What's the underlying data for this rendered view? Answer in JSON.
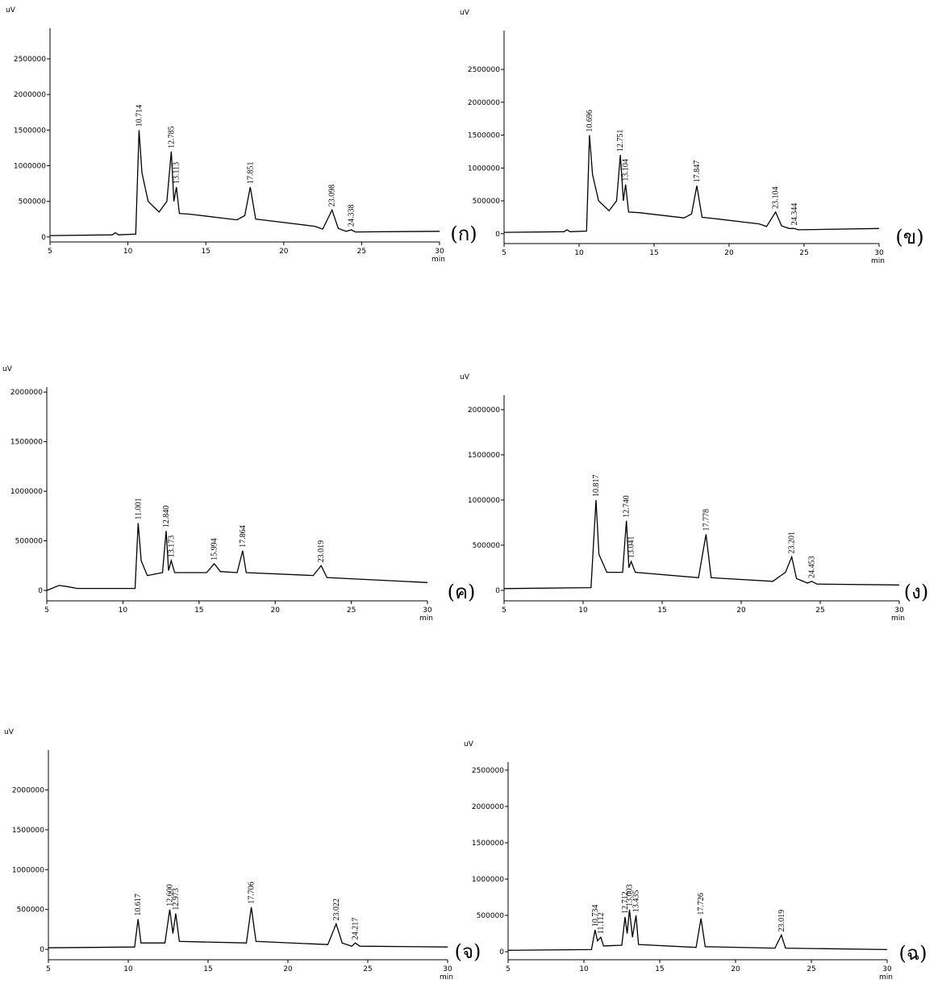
{
  "chart_data": [
    {
      "type": "line",
      "panel_label": "(ก)",
      "y_label": "uV",
      "x_label": "min",
      "x": [
        5,
        9,
        9.2,
        9.4,
        10.5,
        10.714,
        10.9,
        11.3,
        12,
        12.5,
        12.785,
        12.95,
        13.113,
        13.3,
        14,
        17,
        17.5,
        17.851,
        18.2,
        19,
        22,
        22.5,
        23.098,
        23.5,
        24,
        24.338,
        24.6,
        30
      ],
      "values": [
        20000,
        30000,
        60000,
        30000,
        40000,
        1500000,
        900000,
        500000,
        350000,
        500000,
        1200000,
        500000,
        700000,
        330000,
        320000,
        240000,
        300000,
        700000,
        250000,
        230000,
        150000,
        110000,
        380000,
        120000,
        80000,
        100000,
        70000,
        80000
      ],
      "annotations": [
        "10.714",
        "12.785",
        "13.113",
        "17.851",
        "23.098",
        "24.338"
      ],
      "xlim": [
        5,
        30
      ],
      "xticks": [
        5,
        10,
        15,
        20,
        25,
        30
      ],
      "ylim": [
        -70000,
        2930000
      ],
      "yticks": [
        0,
        500000,
        1000000,
        1500000,
        2000000,
        2500000
      ],
      "color": "#000000"
    },
    {
      "type": "line",
      "panel_label": "(ข)",
      "y_label": "uV",
      "x_label": "min",
      "x": [
        5,
        9,
        9.2,
        9.4,
        10.5,
        10.696,
        10.9,
        11.3,
        12,
        12.5,
        12.751,
        12.95,
        13.104,
        13.3,
        14,
        17,
        17.5,
        17.847,
        18.2,
        19,
        22,
        22.5,
        23.104,
        23.5,
        24,
        24.344,
        24.6,
        30
      ],
      "values": [
        20000,
        30000,
        60000,
        30000,
        40000,
        1500000,
        900000,
        500000,
        350000,
        500000,
        1200000,
        500000,
        750000,
        330000,
        320000,
        240000,
        300000,
        730000,
        250000,
        230000,
        150000,
        110000,
        330000,
        120000,
        80000,
        80000,
        60000,
        80000
      ],
      "annotations": [
        "10.696",
        "12.751",
        "13.104",
        "17.847",
        "23.104",
        "24.344"
      ],
      "xlim": [
        5,
        30
      ],
      "xticks": [
        5,
        10,
        15,
        20,
        25,
        30
      ],
      "ylim": [
        -150000,
        3090000
      ],
      "yticks": [
        0,
        500000,
        1000000,
        1500000,
        2000000,
        2500000
      ],
      "color": "#000000"
    },
    {
      "type": "line",
      "panel_label": "(ค)",
      "y_label": "uV",
      "x_label": "min",
      "x": [
        5,
        5.8,
        6.3,
        7,
        10.8,
        11.001,
        11.2,
        11.6,
        12.6,
        12.84,
        13.0,
        13.173,
        13.4,
        15.5,
        15.994,
        16.4,
        17.5,
        17.864,
        18.1,
        22.5,
        23.019,
        23.4,
        30
      ],
      "values": [
        0,
        50000,
        40000,
        20000,
        20000,
        680000,
        300000,
        150000,
        180000,
        600000,
        200000,
        300000,
        180000,
        180000,
        270000,
        190000,
        180000,
        400000,
        180000,
        150000,
        250000,
        130000,
        80000
      ],
      "annotations": [
        "11.001",
        "12.840",
        "13.173",
        "15.994",
        "17.864",
        "23.019"
      ],
      "xlim": [
        5,
        30
      ],
      "xticks": [
        5,
        10,
        15,
        20,
        25,
        30
      ],
      "ylim": [
        -105000,
        2050000
      ],
      "yticks": [
        0,
        500000,
        1000000,
        1500000,
        2000000
      ],
      "color": "#000000"
    },
    {
      "type": "line",
      "panel_label": "(ง)",
      "y_label": "uV",
      "x_label": "min",
      "x": [
        5,
        10.5,
        10.817,
        11.0,
        11.5,
        12.5,
        12.74,
        12.9,
        13.041,
        13.3,
        17.3,
        17.778,
        18.1,
        22,
        22.8,
        23.201,
        23.5,
        24.2,
        24.453,
        24.8,
        30
      ],
      "values": [
        20000,
        30000,
        1000000,
        400000,
        200000,
        200000,
        770000,
        250000,
        320000,
        200000,
        140000,
        620000,
        140000,
        100000,
        200000,
        370000,
        130000,
        80000,
        100000,
        70000,
        60000
      ],
      "annotations": [
        "10.817",
        "12.740",
        "13.041",
        "17.778",
        "23.201",
        "24.453"
      ],
      "xlim": [
        5,
        30
      ],
      "xticks": [
        5,
        10,
        15,
        20,
        25,
        30
      ],
      "ylim": [
        -116000,
        2160000
      ],
      "yticks": [
        0,
        500000,
        1000000,
        1500000,
        2000000
      ],
      "color": "#000000"
    },
    {
      "type": "line",
      "panel_label": "(จ)",
      "y_label": "uV",
      "x_label": "min",
      "x": [
        5,
        10.4,
        10.617,
        10.8,
        12.3,
        12.6,
        12.8,
        12.973,
        13.2,
        17.4,
        17.706,
        18.0,
        22.5,
        23.022,
        23.4,
        24.0,
        24.217,
        24.5,
        30
      ],
      "values": [
        20000,
        30000,
        380000,
        80000,
        80000,
        500000,
        200000,
        450000,
        100000,
        80000,
        530000,
        100000,
        60000,
        320000,
        80000,
        40000,
        80000,
        40000,
        30000
      ],
      "annotations": [
        "10.617",
        "12.600",
        "12.973",
        "17.706",
        "23.022",
        "24.217"
      ],
      "xlim": [
        5,
        30
      ],
      "xticks": [
        5,
        10,
        15,
        20,
        25,
        30
      ],
      "ylim": [
        -130000,
        2500000
      ],
      "yticks": [
        0,
        500000,
        1000000,
        1500000,
        2000000
      ],
      "color": "#000000"
    },
    {
      "type": "line",
      "panel_label": "(ฉ)",
      "y_label": "uV",
      "x_label": "min",
      "x": [
        5,
        10.5,
        10.734,
        10.9,
        11.112,
        11.3,
        12.5,
        12.712,
        12.85,
        13.003,
        13.2,
        13.435,
        13.6,
        17.4,
        17.726,
        18.0,
        22.6,
        23.019,
        23.3,
        30
      ],
      "values": [
        20000,
        30000,
        300000,
        150000,
        200000,
        80000,
        90000,
        480000,
        250000,
        580000,
        200000,
        500000,
        100000,
        60000,
        460000,
        70000,
        50000,
        230000,
        50000,
        30000
      ],
      "annotations": [
        "10.734",
        "11.112",
        "12.712",
        "13.003",
        "13.435",
        "17.726",
        "23.019"
      ],
      "xlim": [
        5,
        30
      ],
      "xticks": [
        5,
        10,
        15,
        20,
        25,
        30
      ],
      "ylim": [
        -110000,
        2610000
      ],
      "yticks": [
        0,
        500000,
        1000000,
        1500000,
        2000000,
        2500000
      ],
      "color": "#000000"
    }
  ]
}
